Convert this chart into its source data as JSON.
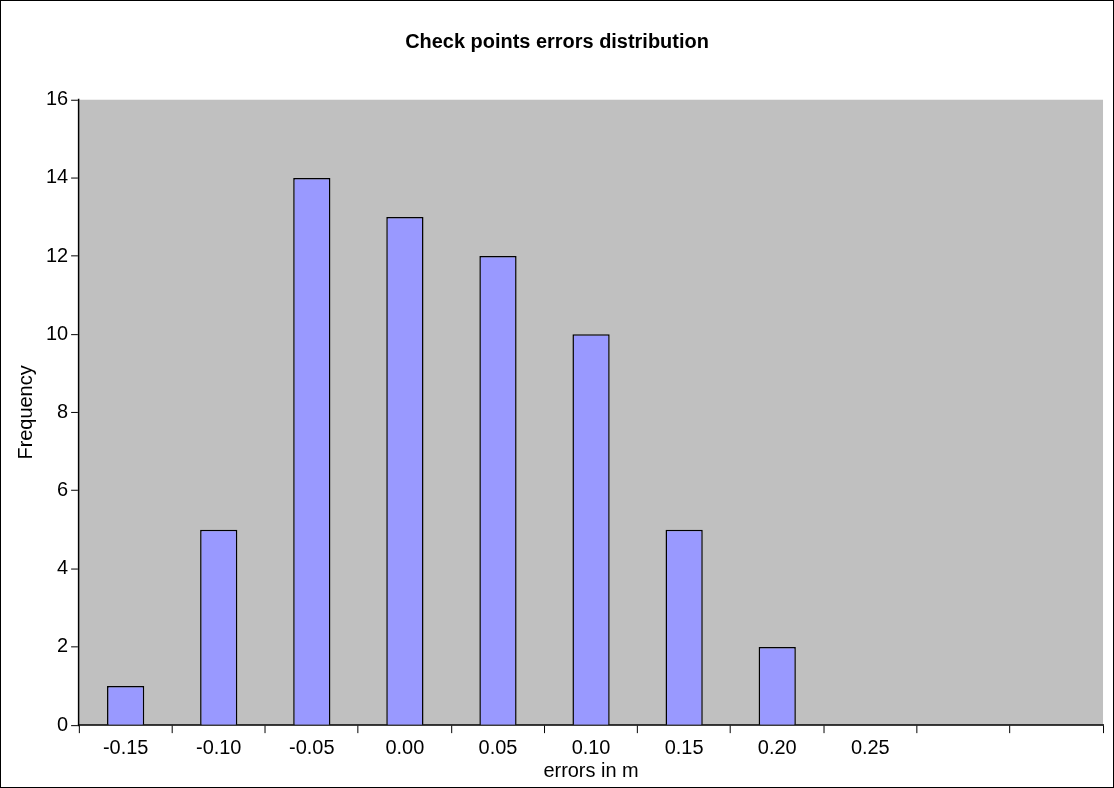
{
  "chart_data": {
    "type": "bar",
    "title": "Check points errors distribution",
    "xlabel": "errors in m",
    "ylabel": "Frequency",
    "categories": [
      "-0.15",
      "-0.10",
      "-0.05",
      "0.00",
      "0.05",
      "0.10",
      "0.15",
      "0.20",
      "0.25",
      null,
      null
    ],
    "series": [
      {
        "color": "#9999ff",
        "values": [
          1,
          5,
          14,
          13,
          12,
          10,
          5,
          2,
          0,
          null,
          null
        ]
      }
    ],
    "ylim": [
      0,
      16
    ],
    "yticks": [
      0,
      2,
      4,
      6,
      8,
      10,
      12,
      14,
      16
    ],
    "grid": false,
    "legend": false
  }
}
